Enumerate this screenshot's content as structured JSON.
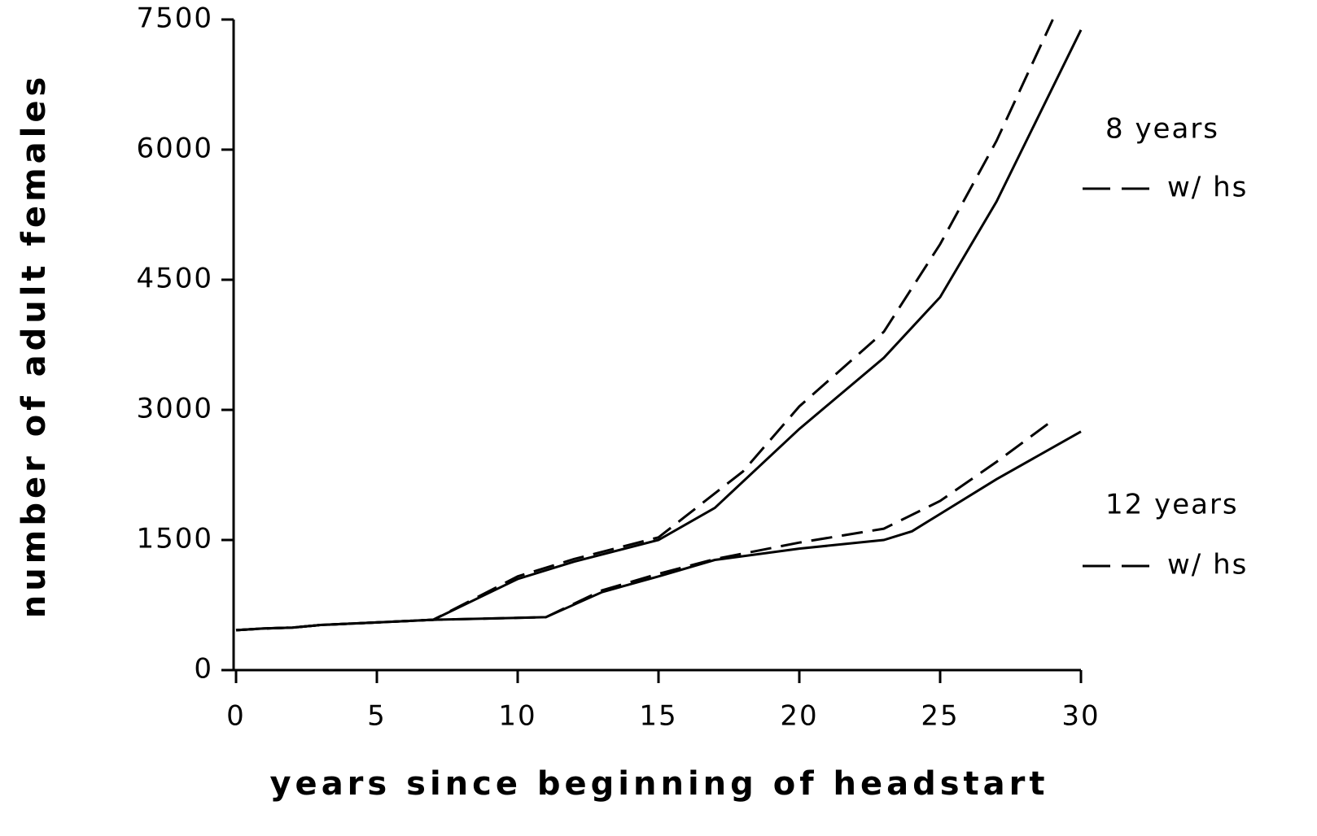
{
  "chart_data": {
    "type": "line",
    "xlabel": "years since beginning of headstart",
    "ylabel": "number of adult females",
    "xlim": [
      0,
      30
    ],
    "xticks": [
      0,
      5,
      10,
      15,
      20,
      25,
      30
    ],
    "ylim": [
      0,
      7500
    ],
    "yticks": [
      0,
      1500,
      3000,
      4500,
      6000,
      7500
    ],
    "series": [
      {
        "name": "8 years",
        "color": "#000000",
        "dash": false,
        "x": [
          0,
          1,
          2,
          3,
          5,
          7,
          10,
          12,
          15,
          17,
          20,
          23,
          25,
          27,
          30
        ],
        "values": [
          460,
          480,
          490,
          520,
          550,
          580,
          1050,
          1250,
          1500,
          1870,
          2780,
          3600,
          4300,
          5400,
          7380
        ]
      },
      {
        "name": "w/ hs",
        "color": "#000000",
        "dash": true,
        "x": [
          0,
          1,
          2,
          3,
          5,
          7,
          10,
          12,
          15,
          18,
          20,
          23,
          25,
          27,
          29
        ],
        "values": [
          460,
          480,
          490,
          520,
          550,
          580,
          1080,
          1280,
          1530,
          2290,
          3040,
          3900,
          4910,
          6100,
          7500
        ]
      },
      {
        "name": "12 years",
        "color": "#000000",
        "dash": false,
        "x": [
          0,
          1,
          2,
          3,
          5,
          7,
          11,
          13,
          15,
          17,
          20,
          23,
          24,
          25,
          27,
          30
        ],
        "values": [
          460,
          480,
          490,
          520,
          550,
          580,
          610,
          900,
          1080,
          1270,
          1400,
          1500,
          1600,
          1800,
          2200,
          2750
        ]
      },
      {
        "name": "w/ hs",
        "color": "#000000",
        "dash": true,
        "x": [
          0,
          1,
          2,
          3,
          5,
          7,
          11,
          13,
          15,
          17,
          20,
          23,
          25,
          27,
          29
        ],
        "values": [
          460,
          480,
          490,
          520,
          550,
          580,
          610,
          920,
          1110,
          1280,
          1470,
          1630,
          1950,
          2400,
          2880
        ]
      }
    ]
  }
}
